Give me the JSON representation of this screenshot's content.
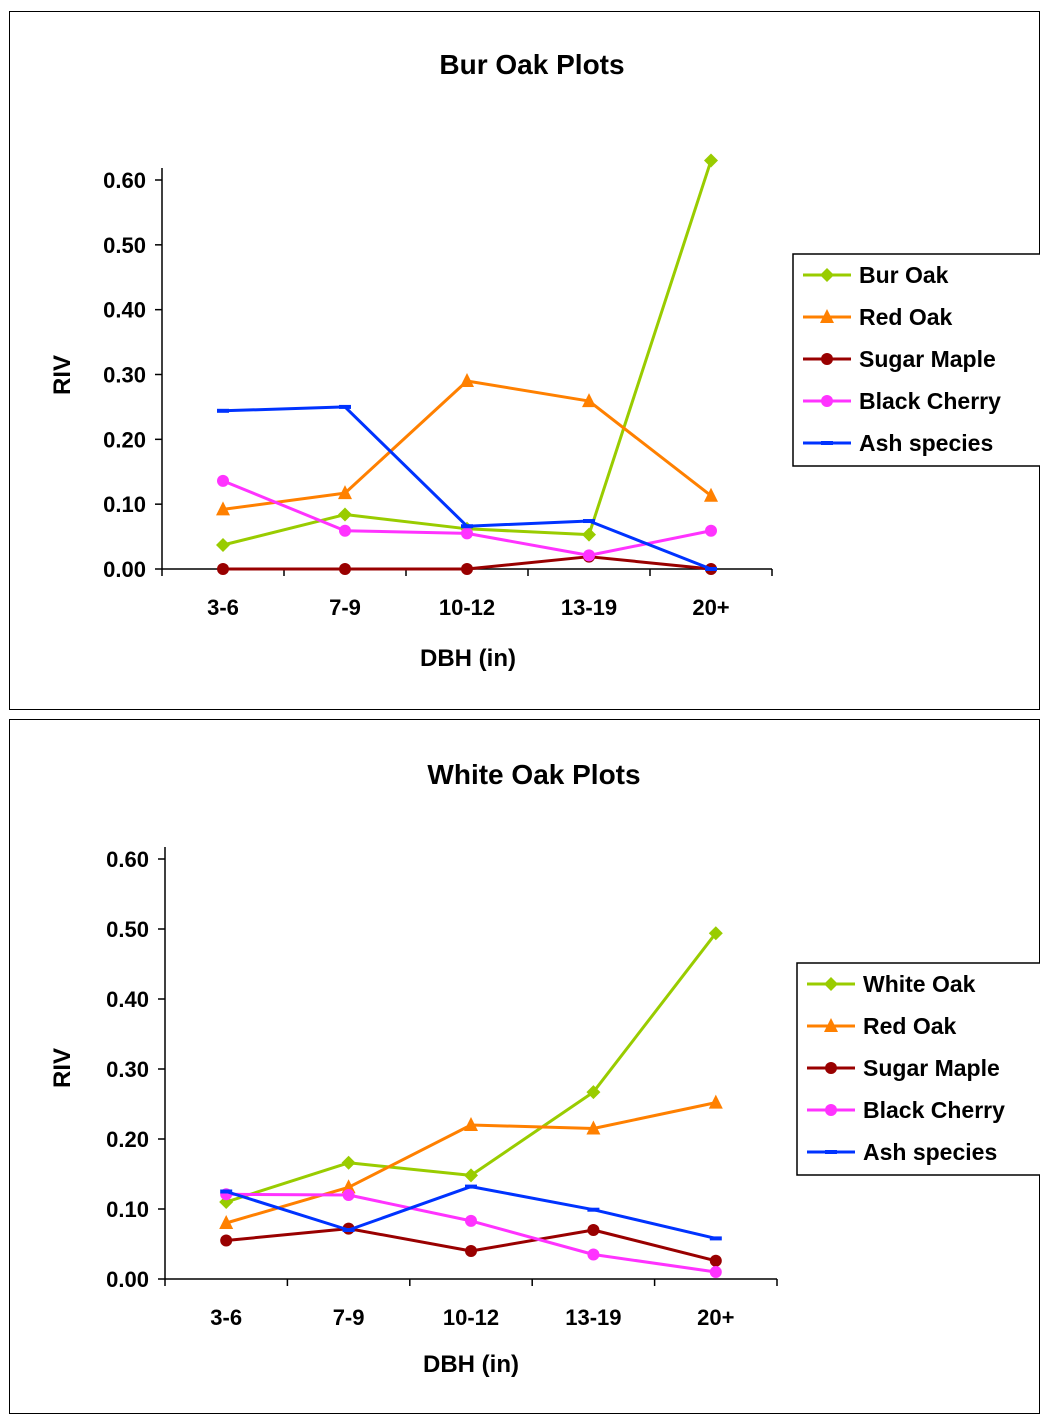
{
  "chart_data": [
    {
      "type": "line",
      "title": "Bur Oak Plots",
      "xlabel": "DBH (in)",
      "ylabel": "RIV",
      "categories": [
        "3-6",
        "7-9",
        "10-12",
        "13-19",
        "20+"
      ],
      "ylim": [
        0,
        0.6
      ],
      "yticks": [
        "0.00",
        "0.10",
        "0.20",
        "0.30",
        "0.40",
        "0.50",
        "0.60"
      ],
      "grid": false,
      "legend_position": "right",
      "series": [
        {
          "name": "Bur Oak",
          "color": "#99cc00",
          "marker": "diamond",
          "values": [
            0.037,
            0.084,
            0.062,
            0.053,
            0.63
          ]
        },
        {
          "name": "Red Oak",
          "color": "#ff8000",
          "marker": "triangle",
          "values": [
            0.092,
            0.117,
            0.29,
            0.259,
            0.113
          ]
        },
        {
          "name": "Sugar Maple",
          "color": "#990000",
          "marker": "circle",
          "values": [
            0.0,
            0.0,
            0.0,
            0.019,
            0.0
          ]
        },
        {
          "name": "Black Cherry",
          "color": "#ff33ff",
          "marker": "circle",
          "values": [
            0.136,
            0.059,
            0.055,
            0.021,
            0.059
          ]
        },
        {
          "name": "Ash species",
          "color": "#0033ff",
          "marker": "dash",
          "values": [
            0.244,
            0.25,
            0.066,
            0.074,
            0.0
          ]
        }
      ]
    },
    {
      "type": "line",
      "title": "White Oak Plots",
      "xlabel": "DBH (in)",
      "ylabel": "RIV",
      "categories": [
        "3-6",
        "7-9",
        "10-12",
        "13-19",
        "20+"
      ],
      "ylim": [
        0,
        0.6
      ],
      "yticks": [
        "0.00",
        "0.10",
        "0.20",
        "0.30",
        "0.40",
        "0.50",
        "0.60"
      ],
      "grid": false,
      "legend_position": "right",
      "series": [
        {
          "name": "White Oak",
          "color": "#99cc00",
          "marker": "diamond",
          "values": [
            0.11,
            0.166,
            0.148,
            0.267,
            0.494
          ]
        },
        {
          "name": "Red Oak",
          "color": "#ff8000",
          "marker": "triangle",
          "values": [
            0.08,
            0.131,
            0.22,
            0.215,
            0.252
          ]
        },
        {
          "name": "Sugar Maple",
          "color": "#990000",
          "marker": "circle",
          "values": [
            0.055,
            0.072,
            0.04,
            0.07,
            0.026
          ]
        },
        {
          "name": "Black Cherry",
          "color": "#ff33ff",
          "marker": "circle",
          "values": [
            0.121,
            0.12,
            0.083,
            0.035,
            0.01
          ]
        },
        {
          "name": "Ash species",
          "color": "#0033ff",
          "marker": "dash",
          "values": [
            0.125,
            0.07,
            0.132,
            0.099,
            0.058
          ]
        }
      ]
    }
  ]
}
